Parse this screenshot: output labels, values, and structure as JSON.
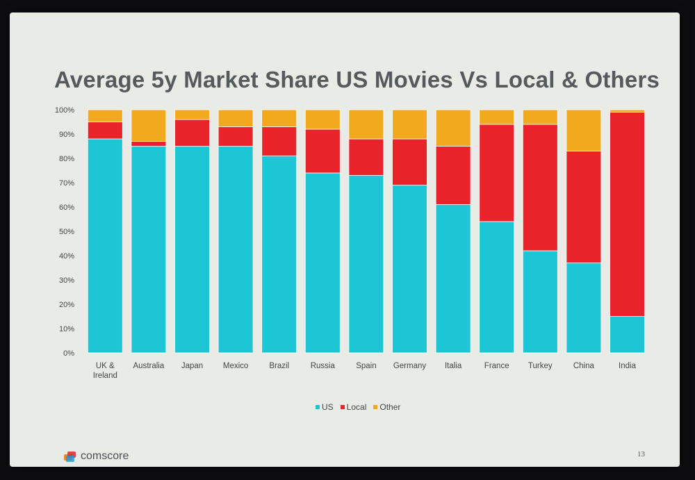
{
  "slide": {
    "title": "Average 5y Market Share US Movies Vs Local & Others",
    "logo_text": "comscore",
    "page_number": "13"
  },
  "chart_data": {
    "type": "bar",
    "stacked": true,
    "title": "Average 5y Market Share US Movies Vs Local & Others",
    "categories": [
      "UK & Ireland",
      "Australia",
      "Japan",
      "Mexico",
      "Brazil",
      "Russia",
      "Spain",
      "Germany",
      "Italia",
      "France",
      "Turkey",
      "China",
      "India"
    ],
    "series": [
      {
        "name": "US",
        "color": "#1dc6d4",
        "values": [
          88,
          85,
          85,
          85,
          81,
          74,
          73,
          69,
          61,
          54,
          42,
          37,
          15
        ]
      },
      {
        "name": "Local",
        "color": "#e8242a",
        "values": [
          7,
          2,
          11,
          8,
          12,
          18,
          15,
          19,
          24,
          40,
          52,
          46,
          84
        ]
      },
      {
        "name": "Other",
        "color": "#f2a91e",
        "values": [
          5,
          13,
          4,
          7,
          7,
          8,
          12,
          12,
          15,
          6,
          6,
          17,
          1
        ]
      }
    ],
    "yticks": [
      "0%",
      "10%",
      "20%",
      "30%",
      "40%",
      "50%",
      "60%",
      "70%",
      "80%",
      "90%",
      "100%"
    ],
    "ylim": [
      0,
      100
    ],
    "grid": false,
    "legend_position": "bottom-center"
  }
}
